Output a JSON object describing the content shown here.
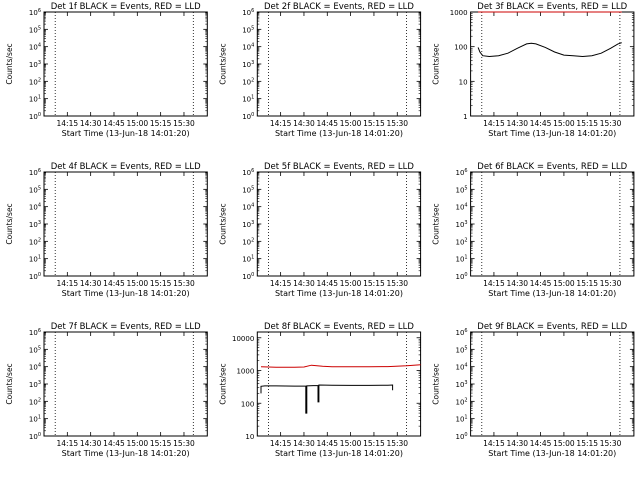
{
  "chart_data": [
    {
      "type": "line",
      "title": "Det 1f BLACK = Events, RED = LLD",
      "xlabel": "Start Time (13-Jun-18 14:01:20)",
      "ylabel": "Counts/sec",
      "xlim": [
        14.0,
        15.75
      ],
      "x_ticks": [
        "14:15",
        "14:30",
        "14:45",
        "15:00",
        "15:15",
        "15:30"
      ],
      "x_tick_values": [
        14.25,
        14.5,
        14.75,
        15.0,
        15.25,
        15.5
      ],
      "y_scale": "log",
      "ylim": [
        1,
        1000000
      ],
      "y_tick_labels": [
        "10^0",
        "10^1",
        "10^2",
        "10^3",
        "10^4",
        "10^5",
        "10^6"
      ],
      "vlines": [
        14.12,
        15.6
      ],
      "series": []
    },
    {
      "type": "line",
      "title": "Det 2f BLACK = Events, RED = LLD",
      "xlabel": "Start Time (13-Jun-18 14:01:20)",
      "ylabel": "Counts/sec",
      "xlim": [
        14.0,
        15.75
      ],
      "x_ticks": [
        "14:15",
        "14:30",
        "14:45",
        "15:00",
        "15:15",
        "15:30"
      ],
      "x_tick_values": [
        14.25,
        14.5,
        14.75,
        15.0,
        15.25,
        15.5
      ],
      "y_scale": "log",
      "ylim": [
        1,
        1000000
      ],
      "y_tick_labels": [
        "10^0",
        "10^1",
        "10^2",
        "10^3",
        "10^4",
        "10^5",
        "10^6"
      ],
      "vlines": [
        14.12,
        15.6
      ],
      "series": []
    },
    {
      "type": "line",
      "title": "Det 3f BLACK = Events, RED = LLD",
      "xlabel": "Start Time (13-Jun-18 14:01:20)",
      "ylabel": "Counts/sec",
      "xlim": [
        14.0,
        15.75
      ],
      "x_ticks": [
        "14:15",
        "14:30",
        "14:45",
        "15:00",
        "15:15",
        "15:30"
      ],
      "x_tick_values": [
        14.25,
        14.5,
        14.75,
        15.0,
        15.25,
        15.5
      ],
      "y_scale": "log",
      "ylim": [
        1,
        1000
      ],
      "y_tick_labels": [
        "1",
        "10",
        "100",
        "1000"
      ],
      "vlines": [
        14.12,
        15.6
      ],
      "series": [
        {
          "color": "#000000",
          "x": [
            14.08,
            14.1,
            14.13,
            14.2,
            14.3,
            14.4,
            14.5,
            14.6,
            14.65,
            14.7,
            14.8,
            14.9,
            15.0,
            15.1,
            15.2,
            15.3,
            15.4,
            15.5,
            15.58,
            15.62
          ],
          "y": [
            95,
            70,
            55,
            52,
            55,
            65,
            90,
            120,
            125,
            120,
            95,
            70,
            57,
            55,
            52,
            55,
            65,
            90,
            120,
            130
          ]
        },
        {
          "color": "#cc0000",
          "x": [
            14.08,
            14.3,
            14.6,
            15.0,
            15.3,
            15.62
          ],
          "y": [
            1000,
            1000,
            1000,
            1000,
            1000,
            1000
          ]
        }
      ]
    },
    {
      "type": "line",
      "title": "Det 4f BLACK = Events, RED = LLD",
      "xlabel": "Start Time (13-Jun-18 14:01:20)",
      "ylabel": "Counts/sec",
      "xlim": [
        14.0,
        15.75
      ],
      "x_ticks": [
        "14:15",
        "14:30",
        "14:45",
        "15:00",
        "15:15",
        "15:30"
      ],
      "x_tick_values": [
        14.25,
        14.5,
        14.75,
        15.0,
        15.25,
        15.5
      ],
      "y_scale": "log",
      "ylim": [
        1,
        1000000
      ],
      "y_tick_labels": [
        "10^0",
        "10^1",
        "10^2",
        "10^3",
        "10^4",
        "10^5",
        "10^6"
      ],
      "vlines": [
        14.12,
        15.6
      ],
      "series": []
    },
    {
      "type": "line",
      "title": "Det 5f BLACK = Events, RED = LLD",
      "xlabel": "Start Time (13-Jun-18 14:01:20)",
      "ylabel": "Counts/sec",
      "xlim": [
        14.0,
        15.75
      ],
      "x_ticks": [
        "14:15",
        "14:30",
        "14:45",
        "15:00",
        "15:15",
        "15:30"
      ],
      "x_tick_values": [
        14.25,
        14.5,
        14.75,
        15.0,
        15.25,
        15.5
      ],
      "y_scale": "log",
      "ylim": [
        1,
        1000000
      ],
      "y_tick_labels": [
        "10^0",
        "10^1",
        "10^2",
        "10^3",
        "10^4",
        "10^5",
        "10^6"
      ],
      "vlines": [
        14.12,
        15.6
      ],
      "series": []
    },
    {
      "type": "line",
      "title": "Det 6f BLACK = Events, RED = LLD",
      "xlabel": "Start Time (13-Jun-18 14:01:20)",
      "ylabel": "Counts/sec",
      "xlim": [
        14.0,
        15.75
      ],
      "x_ticks": [
        "14:15",
        "14:30",
        "14:45",
        "15:00",
        "15:15",
        "15:30"
      ],
      "x_tick_values": [
        14.25,
        14.5,
        14.75,
        15.0,
        15.25,
        15.5
      ],
      "y_scale": "log",
      "ylim": [
        1,
        1000000
      ],
      "y_tick_labels": [
        "10^0",
        "10^1",
        "10^2",
        "10^3",
        "10^4",
        "10^5",
        "10^6"
      ],
      "vlines": [
        14.12,
        15.6
      ],
      "series": []
    },
    {
      "type": "line",
      "title": "Det 7f BLACK = Events, RED = LLD",
      "xlabel": "Start Time (13-Jun-18 14:01:20)",
      "ylabel": "Counts/sec",
      "xlim": [
        14.0,
        15.75
      ],
      "x_ticks": [
        "14:15",
        "14:30",
        "14:45",
        "15:00",
        "15:15",
        "15:30"
      ],
      "x_tick_values": [
        14.25,
        14.5,
        14.75,
        15.0,
        15.25,
        15.5
      ],
      "y_scale": "log",
      "ylim": [
        1,
        1000000
      ],
      "y_tick_labels": [
        "10^0",
        "10^1",
        "10^2",
        "10^3",
        "10^4",
        "10^5",
        "10^6"
      ],
      "vlines": [
        14.12,
        15.6
      ],
      "series": []
    },
    {
      "type": "line",
      "title": "Det 8f BLACK = Events, RED = LLD",
      "xlabel": "Start Time (13-Jun-18 14:01:20)",
      "ylabel": "Counts/sec",
      "xlim": [
        14.0,
        15.75
      ],
      "x_ticks": [
        "14:15",
        "14:30",
        "14:45",
        "15:00",
        "15:15",
        "15:30"
      ],
      "x_tick_values": [
        14.25,
        14.5,
        14.75,
        15.0,
        15.25,
        15.5
      ],
      "y_scale": "log",
      "ylim": [
        10,
        15000
      ],
      "y_tick_labels": [
        "10",
        "100",
        "1000",
        "10000"
      ],
      "vlines": [
        14.12,
        15.6
      ],
      "series": [
        {
          "color": "#000000",
          "x": [
            14.04,
            14.04,
            14.08,
            14.2,
            14.4,
            14.52,
            14.52,
            14.53,
            14.53,
            14.6,
            14.65,
            14.65,
            14.66,
            14.66,
            14.8,
            15.0,
            15.2,
            15.4,
            15.45,
            15.45
          ],
          "y": [
            200,
            330,
            340,
            340,
            335,
            335,
            50,
            50,
            340,
            345,
            345,
            110,
            110,
            360,
            355,
            350,
            350,
            355,
            360,
            250
          ]
        },
        {
          "color": "#cc0000",
          "x": [
            14.04,
            14.2,
            14.4,
            14.5,
            14.58,
            14.7,
            14.8,
            15.0,
            15.2,
            15.4,
            15.6,
            15.75
          ],
          "y": [
            1300,
            1250,
            1250,
            1280,
            1450,
            1350,
            1300,
            1300,
            1300,
            1320,
            1400,
            1500
          ]
        }
      ]
    },
    {
      "type": "line",
      "title": "Det 9f BLACK = Events, RED = LLD",
      "xlabel": "Start Time (13-Jun-18 14:01:20)",
      "ylabel": "Counts/sec",
      "xlim": [
        14.0,
        15.75
      ],
      "x_ticks": [
        "14:15",
        "14:30",
        "14:45",
        "15:00",
        "15:15",
        "15:30"
      ],
      "x_tick_values": [
        14.25,
        14.5,
        14.75,
        15.0,
        15.25,
        15.5
      ],
      "y_scale": "log",
      "ylim": [
        1,
        1000000
      ],
      "y_tick_labels": [
        "10^0",
        "10^1",
        "10^2",
        "10^3",
        "10^4",
        "10^5",
        "10^6"
      ],
      "vlines": [
        14.12,
        15.6
      ],
      "series": []
    }
  ]
}
